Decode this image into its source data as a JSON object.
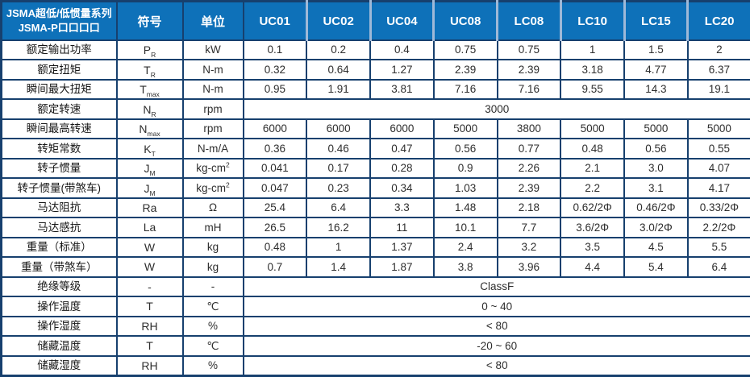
{
  "colors": {
    "header_bg": "#0e71b9",
    "header_text": "#ffffff",
    "border": "#17406e",
    "header_separator": "#9fb9d8",
    "value_text": "#2e2e2e",
    "label_text": "#161616"
  },
  "table": {
    "header": {
      "series_title_line1": "JSMA超低/低惯量系列",
      "series_title_line2": "JSMA-P口口口口",
      "symbol_label": "符号",
      "unit_label": "单位",
      "models": [
        "UC01",
        "UC02",
        "UC04",
        "UC08",
        "LC08",
        "LC10",
        "LC15",
        "LC20"
      ]
    },
    "rows": [
      {
        "label": "额定输出功率",
        "sym": "P",
        "sym_sub": "R",
        "unit": "kW",
        "values": [
          "0.1",
          "0.2",
          "0.4",
          "0.75",
          "0.75",
          "1",
          "1.5",
          "2"
        ]
      },
      {
        "label": "额定扭矩",
        "sym": "T",
        "sym_sub": "R",
        "unit": "N-m",
        "values": [
          "0.32",
          "0.64",
          "1.27",
          "2.39",
          "2.39",
          "3.18",
          "4.77",
          "6.37"
        ]
      },
      {
        "label": "瞬间最大扭矩",
        "sym": "T",
        "sym_sub": "max",
        "unit": "N-m",
        "values": [
          "0.95",
          "1.91",
          "3.81",
          "7.16",
          "7.16",
          "9.55",
          "14.3",
          "19.1"
        ]
      },
      {
        "label": "额定转速",
        "sym": "N",
        "sym_sub": "R",
        "unit": "rpm",
        "merged": "3000"
      },
      {
        "label": "瞬间最高转速",
        "sym": "N",
        "sym_sub": "max",
        "unit": "rpm",
        "values": [
          "6000",
          "6000",
          "6000",
          "5000",
          "3800",
          "5000",
          "5000",
          "5000"
        ]
      },
      {
        "label": "转矩常数",
        "sym": "K",
        "sym_sub": "T",
        "unit": "N-m/A",
        "values": [
          "0.36",
          "0.46",
          "0.47",
          "0.56",
          "0.77",
          "0.48",
          "0.56",
          "0.55"
        ]
      },
      {
        "label": "转子惯量",
        "sym": "J",
        "sym_sub": "M",
        "unit": "kg-cm",
        "unit_sup": "2",
        "values": [
          "0.041",
          "0.17",
          "0.28",
          "0.9",
          "2.26",
          "2.1",
          "3.0",
          "4.07"
        ]
      },
      {
        "label": "转子惯量(带煞车)",
        "sym": "J",
        "sym_sub": "M",
        "unit": "kg-cm",
        "unit_sup": "2",
        "values": [
          "0.047",
          "0.23",
          "0.34",
          "1.03",
          "2.39",
          "2.2",
          "3.1",
          "4.17"
        ]
      },
      {
        "label": "马达阻抗",
        "sym": "Ra",
        "unit": "Ω",
        "values": [
          "25.4",
          "6.4",
          "3.3",
          "1.48",
          "2.18",
          "0.62/2Φ",
          "0.46/2Φ",
          "0.33/2Φ"
        ]
      },
      {
        "label": "马达感抗",
        "sym": "La",
        "unit": "mH",
        "values": [
          "26.5",
          "16.2",
          "11",
          "10.1",
          "7.7",
          "3.6/2Φ",
          "3.0/2Φ",
          "2.2/2Φ"
        ]
      },
      {
        "label": "重量（标准）",
        "sym": "W",
        "unit": "kg",
        "values": [
          "0.48",
          "1",
          "1.37",
          "2.4",
          "3.2",
          "3.5",
          "4.5",
          "5.5"
        ]
      },
      {
        "label": "重量（带煞车）",
        "sym": "W",
        "unit": "kg",
        "values": [
          "0.7",
          "1.4",
          "1.87",
          "3.8",
          "3.96",
          "4.4",
          "5.4",
          "6.4"
        ]
      },
      {
        "label": "绝缘等级",
        "sym": "-",
        "unit": "-",
        "merged": "ClassF"
      },
      {
        "label": "操作温度",
        "sym": "T",
        "unit": "℃",
        "merged": "0 ~ 40"
      },
      {
        "label": "操作湿度",
        "sym": "RH",
        "unit": "%",
        "merged": "< 80"
      },
      {
        "label": "储藏温度",
        "sym": "T",
        "unit": "℃",
        "merged": "-20 ~ 60"
      },
      {
        "label": "储藏湿度",
        "sym": "RH",
        "unit": "%",
        "merged": "< 80"
      }
    ]
  }
}
